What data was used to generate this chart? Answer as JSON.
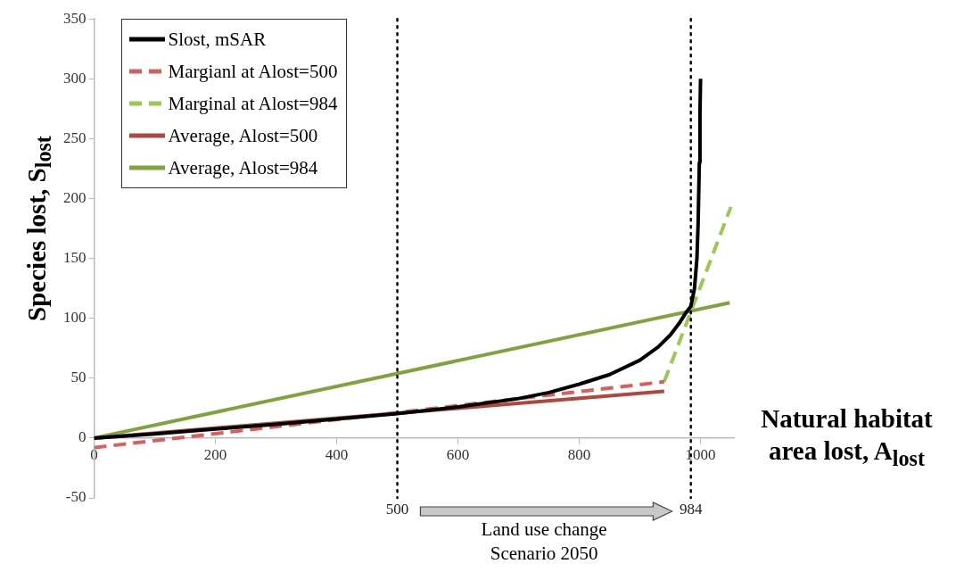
{
  "chart_data": {
    "type": "line",
    "xlabel": "Natural habitat area lost, A$_{lost}$",
    "ylabel": "Species lost, S$_{lost}$",
    "xlim": [
      0,
      1055
    ],
    "xticks": [
      0,
      200,
      400,
      600,
      800,
      1000
    ],
    "ylim": [
      -50,
      350
    ],
    "yticks": [
      -50,
      0,
      50,
      100,
      150,
      200,
      250,
      300,
      350
    ],
    "legend": "top left",
    "series": [
      {
        "name": "Slost, mSAR",
        "color": "#000000",
        "line_style": "solid",
        "x": [
          0,
          100,
          200,
          300,
          400,
          500,
          600,
          700,
          750,
          800,
          850,
          900,
          930,
          950,
          965,
          975,
          984,
          990,
          994,
          996,
          998,
          999,
          1000
        ],
        "values": [
          0,
          3.5,
          7.5,
          11.5,
          16,
          20.5,
          26,
          33,
          38,
          45,
          53,
          65,
          76,
          86,
          96,
          104,
          110,
          125,
          150,
          180,
          230,
          270,
          300
        ]
      },
      {
        "name": "Margianl at Alost=500",
        "color": "#d9605a",
        "line_style": "dashed",
        "x": [
          0,
          940
        ],
        "values": [
          -8,
          47
        ]
      },
      {
        "name": "Marginal at Alost=984",
        "color": "#9bc850",
        "line_style": "dashed",
        "x": [
          940,
          1050
        ],
        "values": [
          47,
          193
        ]
      },
      {
        "name": "Average, Alost=500",
        "color": "#b0473f",
        "line_style": "solid",
        "x": [
          0,
          940
        ],
        "values": [
          0,
          39
        ]
      },
      {
        "name": "Average, Alost=984",
        "color": "#7ea53c",
        "line_style": "solid",
        "x": [
          0,
          1048
        ],
        "values": [
          0,
          113
        ]
      }
    ],
    "ref_lines": [
      {
        "axis": "x",
        "value": 500,
        "label": "500",
        "line_style": "dotted",
        "color": "#000000"
      },
      {
        "axis": "x",
        "value": 984,
        "label": "984",
        "line_style": "dotted",
        "color": "#000000"
      }
    ],
    "annotations": [
      "Land use change Scenario 2050"
    ]
  }
}
